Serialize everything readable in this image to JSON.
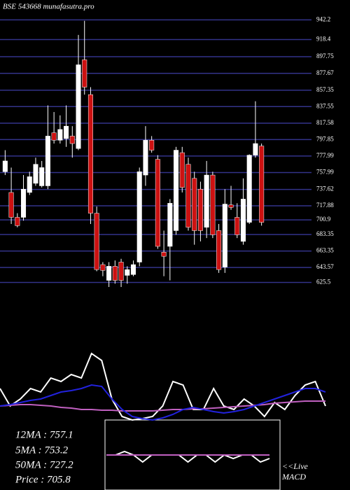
{
  "chart_data": [
    {
      "type": "candlestick",
      "title": "BSE 543668 munafasutra.pro",
      "ylim": [
        620,
        945
      ],
      "yticks": [
        942.2,
        918.4,
        897.75,
        877.67,
        857.35,
        837.55,
        817.58,
        797.85,
        777.99,
        757.99,
        737.62,
        717.88,
        700.9,
        683.35,
        663.35,
        643.57,
        625.5
      ],
      "grid": true,
      "grid_color": "#33338a",
      "up_color": "#ffffff",
      "down_color": "#cc1111",
      "ohlc": [
        [
          759,
          785,
          755,
          772
        ],
        [
          734,
          764,
          696,
          704
        ],
        [
          704,
          709,
          692,
          694
        ],
        [
          704,
          755,
          700,
          738
        ],
        [
          734,
          759,
          731,
          753
        ],
        [
          745,
          776,
          742,
          768
        ],
        [
          742,
          772,
          740,
          764
        ],
        [
          742,
          839,
          738,
          802
        ],
        [
          806,
          831,
          793,
          797
        ],
        [
          797,
          827,
          793,
          810
        ],
        [
          799,
          839,
          789,
          814
        ],
        [
          802,
          814,
          776,
          793
        ],
        [
          787,
          924,
          785,
          888
        ],
        [
          894,
          941,
          852,
          861
        ],
        [
          852,
          861,
          696,
          709
        ],
        [
          709,
          717,
          639,
          641
        ],
        [
          647,
          650,
          633,
          640
        ],
        [
          628,
          650,
          620,
          645
        ],
        [
          645,
          652,
          624,
          628
        ],
        [
          650,
          654,
          620,
          628
        ],
        [
          634,
          645,
          624,
          641
        ],
        [
          635,
          652,
          633,
          647
        ],
        [
          650,
          764,
          645,
          759
        ],
        [
          755,
          814,
          742,
          797
        ],
        [
          797,
          802,
          782,
          785
        ],
        [
          774,
          779,
          666,
          669
        ],
        [
          662,
          688,
          633,
          657
        ],
        [
          669,
          726,
          628,
          721
        ],
        [
          688,
          789,
          683,
          785
        ],
        [
          782,
          789,
          734,
          740
        ],
        [
          768,
          776,
          688,
          692
        ],
        [
          751,
          759,
          671,
          688
        ],
        [
          738,
          747,
          675,
          688
        ],
        [
          692,
          772,
          679,
          755
        ],
        [
          755,
          759,
          679,
          683
        ],
        [
          688,
          696,
          637,
          641
        ],
        [
          644,
          738,
          637,
          720
        ],
        [
          719,
          742,
          713,
          716
        ],
        [
          704,
          721,
          679,
          683
        ],
        [
          675,
          751,
          671,
          726
        ],
        [
          698,
          780,
          696,
          779
        ],
        [
          779,
          844,
          776,
          793
        ],
        [
          790,
          793,
          694,
          698
        ]
      ]
    },
    {
      "type": "line",
      "ylim": [
        0,
        100
      ],
      "series": [
        {
          "color": "#ffffff",
          "values": [
            45,
            20,
            30,
            45,
            40,
            60,
            55,
            65,
            60,
            95,
            85,
            30,
            5,
            0,
            2,
            5,
            20,
            55,
            50,
            15,
            15,
            45,
            20,
            15,
            30,
            20,
            5,
            25,
            15,
            35,
            50,
            55,
            20
          ]
        },
        {
          "color": "#c060c0",
          "values": [
            20,
            21,
            22,
            22,
            21,
            20,
            18,
            17,
            15,
            15,
            14,
            14,
            13,
            13,
            13,
            13,
            14,
            15,
            15,
            16,
            16,
            17,
            18,
            19,
            20,
            21,
            22,
            24,
            25,
            26,
            27,
            27,
            27
          ]
        },
        {
          "color": "#2222dd",
          "values": [
            20,
            22,
            25,
            28,
            30,
            35,
            40,
            42,
            45,
            50,
            48,
            30,
            15,
            5,
            2,
            0,
            3,
            8,
            15,
            18,
            15,
            12,
            10,
            12,
            15,
            20,
            25,
            30,
            35,
            40,
            45,
            45,
            40
          ]
        }
      ]
    },
    {
      "type": "line",
      "ylim": [
        0,
        100
      ],
      "series": [
        {
          "color": "#ffffff",
          "values": [
            50,
            50,
            55,
            50,
            40,
            50,
            50,
            50,
            50,
            40,
            50,
            50,
            40,
            50,
            45,
            50,
            50,
            40,
            45
          ]
        },
        {
          "color": "#c060c0",
          "values": [
            50,
            50,
            50,
            50,
            50,
            50,
            50,
            50,
            50,
            50,
            50,
            50,
            50,
            50,
            50,
            50,
            50,
            50,
            50
          ]
        }
      ]
    }
  ],
  "stats": [
    "12MA : 757.1",
    "5MA : 753.2",
    "50MA : 727.2",
    "Price   : 705.8"
  ],
  "macd_label": [
    "<<Live",
    "MACD"
  ]
}
